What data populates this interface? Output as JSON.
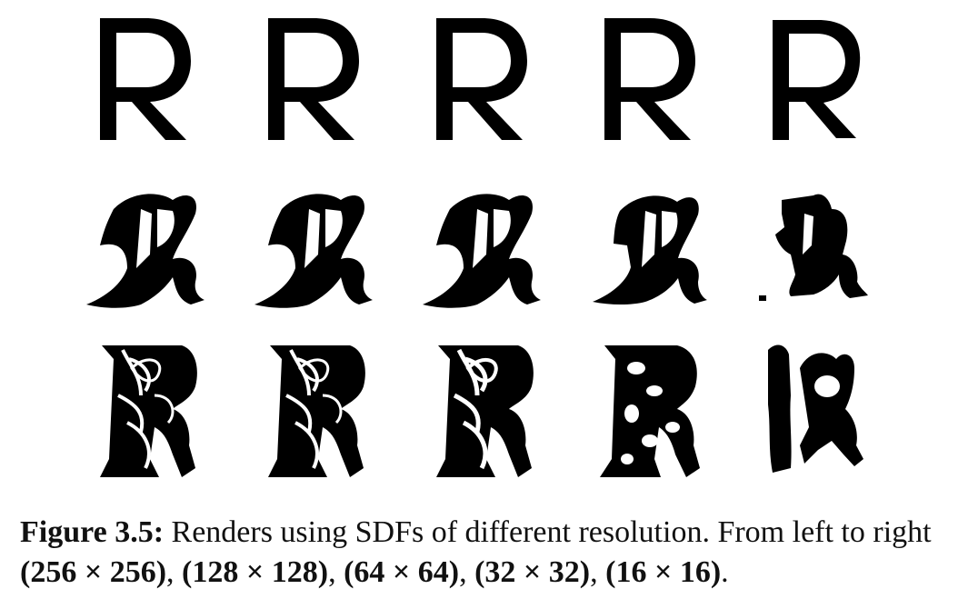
{
  "figure": {
    "rows": [
      {
        "name": "sans-serif",
        "letter": "R",
        "resolutions": [
          "256x256",
          "128x128",
          "64x64",
          "32x32",
          "16x16"
        ]
      },
      {
        "name": "blackletter",
        "letter": "R",
        "resolutions": [
          "256x256",
          "128x128",
          "64x64",
          "32x32",
          "16x16"
        ]
      },
      {
        "name": "ornamental",
        "letter": "R",
        "resolutions": [
          "256x256",
          "128x128",
          "64x64",
          "32x32",
          "16x16"
        ]
      }
    ]
  },
  "caption": {
    "label": "Figure 3.5:",
    "text": " Renders using SDFs of different resolution. From left to right ",
    "resolutions": [
      "(256 × 256)",
      "(128 × 128)",
      "(64 × 64)",
      "(32 × 32)",
      "(16 × 16)"
    ],
    "separator": ", ",
    "end": "."
  }
}
